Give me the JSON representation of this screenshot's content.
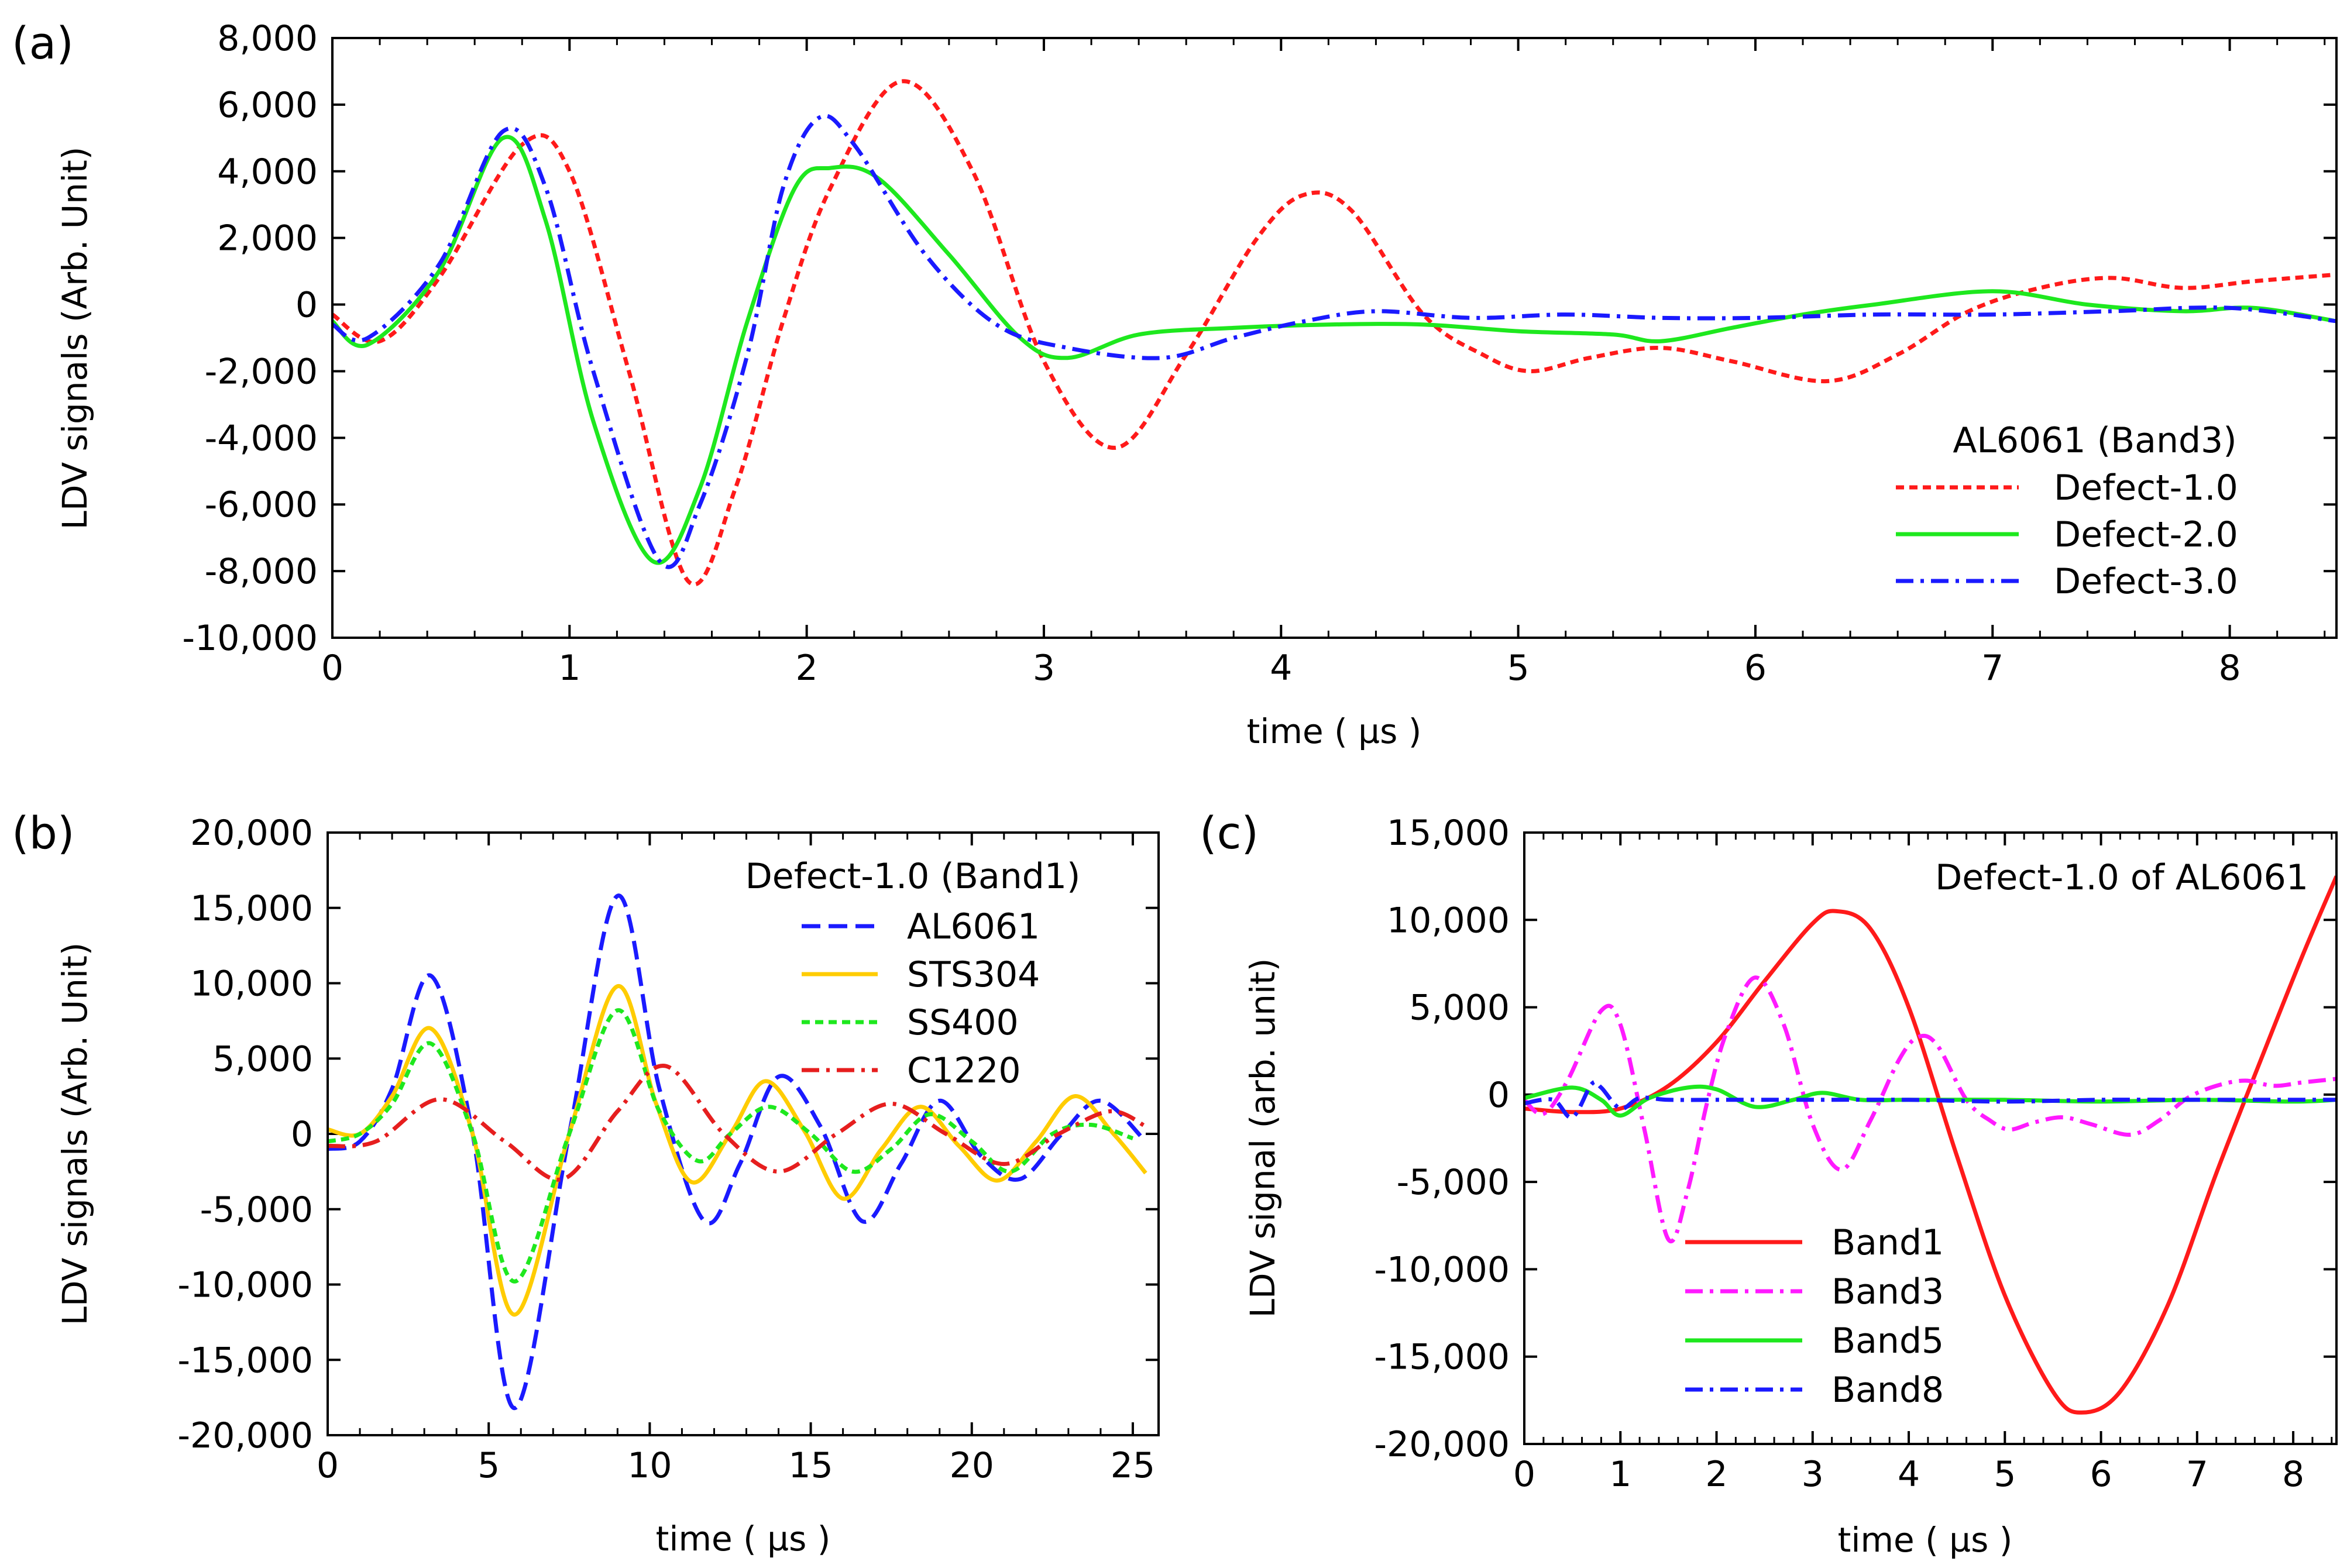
{
  "chart_data": [
    {
      "panel": "(a)",
      "type": "line",
      "xlabel": "time ( µs )",
      "ylabel": "LDV signals (Arb. Unit)",
      "xlim": [
        0,
        8.45
      ],
      "ylim": [
        -10000,
        8000
      ],
      "xticks": [
        0,
        1,
        2,
        3,
        4,
        5,
        6,
        7,
        8
      ],
      "xtick_labels": [
        "0",
        "1",
        "2",
        "3",
        "4",
        "5",
        "6",
        "7",
        "8"
      ],
      "yticks": [
        8000,
        6000,
        4000,
        2000,
        0,
        -2000,
        -4000,
        -6000,
        -8000,
        -10000
      ],
      "ytick_labels": [
        "8,000",
        "6,000",
        "4,000",
        "2,000",
        "0",
        "-2,000",
        "-4,000",
        "-6,000",
        "-8,000",
        "-10,000"
      ],
      "legend_title": "AL6061 (Band3)",
      "legend_position": "bottom-right",
      "series": [
        {
          "name": "Defect-1.0",
          "color": "#ff1a1a",
          "style": "dotted",
          "x": [
            0,
            0.2,
            0.45,
            0.8,
            1.0,
            1.25,
            1.5,
            1.7,
            1.9,
            2.1,
            2.4,
            2.7,
            3.0,
            3.3,
            3.6,
            3.9,
            4.1,
            4.3,
            4.6,
            4.85,
            5.05,
            5.3,
            5.6,
            5.9,
            6.3,
            6.6,
            6.9,
            7.2,
            7.5,
            7.8,
            8.1,
            8.45
          ],
          "y": [
            -300,
            -1100,
            800,
            4800,
            4000,
            -2000,
            -8300,
            -5500,
            -500,
            3500,
            6700,
            4000,
            -1700,
            -4300,
            -1500,
            2000,
            3300,
            2800,
            -300,
            -1500,
            -2000,
            -1600,
            -1300,
            -1700,
            -2300,
            -1500,
            -200,
            500,
            800,
            500,
            700,
            900
          ]
        },
        {
          "name": "Defect-2.0",
          "color": "#1ee81e",
          "style": "solid",
          "x": [
            0,
            0.15,
            0.45,
            0.72,
            0.9,
            1.1,
            1.35,
            1.55,
            1.75,
            1.95,
            2.1,
            2.3,
            2.6,
            2.9,
            3.1,
            3.4,
            3.8,
            4.2,
            4.6,
            5.0,
            5.4,
            5.6,
            5.9,
            6.2,
            6.5,
            7.0,
            7.4,
            7.8,
            8.1,
            8.45
          ],
          "y": [
            -500,
            -1200,
            1000,
            5000,
            2500,
            -3500,
            -7700,
            -5500,
            -500,
            3500,
            4100,
            3800,
            1500,
            -1000,
            -1600,
            -900,
            -700,
            -600,
            -600,
            -800,
            -900,
            -1100,
            -700,
            -300,
            0,
            400,
            0,
            -200,
            -100,
            -500
          ]
        },
        {
          "name": "Defect-3.0",
          "color": "#1a1aff",
          "style": "dashdot",
          "x": [
            0,
            0.15,
            0.45,
            0.72,
            0.9,
            1.1,
            1.38,
            1.55,
            1.75,
            1.9,
            2.05,
            2.2,
            2.5,
            2.8,
            3.1,
            3.5,
            3.8,
            4.1,
            4.4,
            4.8,
            5.2,
            5.6,
            6.0,
            6.5,
            7.0,
            7.5,
            8.0,
            8.45
          ],
          "y": [
            -600,
            -1000,
            1200,
            5200,
            3500,
            -2000,
            -7700,
            -6000,
            -1500,
            3500,
            5600,
            4800,
            1500,
            -600,
            -1300,
            -1600,
            -1000,
            -500,
            -200,
            -400,
            -300,
            -400,
            -400,
            -300,
            -300,
            -200,
            -100,
            -500
          ]
        }
      ]
    },
    {
      "panel": "(b)",
      "type": "line",
      "xlabel": "time ( µs )",
      "ylabel": "LDV signals (Arb. Unit)",
      "xlim": [
        0,
        25.8
      ],
      "ylim": [
        -20000,
        20000
      ],
      "xticks": [
        0,
        5,
        10,
        15,
        20,
        25
      ],
      "xtick_labels": [
        "0",
        "5",
        "10",
        "15",
        "20",
        "25"
      ],
      "yticks": [
        20000,
        15000,
        10000,
        5000,
        0,
        -5000,
        -10000,
        -15000,
        -20000
      ],
      "ytick_labels": [
        "20,000",
        "15,000",
        "10,000",
        "5,000",
        "0",
        "-5,000",
        "-10,000",
        "-15,000",
        "-20,000"
      ],
      "legend_title": "Defect-1.0 (Band1)",
      "legend_position": "top-right",
      "series": [
        {
          "name": "AL6061",
          "color": "#1a1aff",
          "style": "dashed",
          "x": [
            0,
            1,
            2,
            3.2,
            4.5,
            5.8,
            7.5,
            9.0,
            10.3,
            11.7,
            12.8,
            14.0,
            15.3,
            16.6,
            17.8,
            19.0,
            20.3,
            21.5,
            22.8,
            24.0,
            25.4
          ],
          "y": [
            -1000,
            -500,
            3000,
            10500,
            0,
            -18200,
            0,
            15800,
            3000,
            -5800,
            -2000,
            3800,
            500,
            -5800,
            -2000,
            2200,
            -1500,
            -3000,
            0,
            2200,
            -500
          ]
        },
        {
          "name": "STS304",
          "color": "#ffcc00",
          "style": "solid",
          "x": [
            0,
            1,
            2,
            3.2,
            4.5,
            5.8,
            7.5,
            9.0,
            10.2,
            11.3,
            12.5,
            13.6,
            14.8,
            16.0,
            17.2,
            18.4,
            19.6,
            20.8,
            22.0,
            23.2,
            24.4,
            25.4
          ],
          "y": [
            300,
            0,
            2500,
            7000,
            0,
            -12000,
            0,
            9800,
            2000,
            -3200,
            0,
            3500,
            200,
            -4300,
            -1000,
            1800,
            -800,
            -3100,
            -500,
            2500,
            0,
            -2600
          ]
        },
        {
          "name": "SS400",
          "color": "#1ee81e",
          "style": "dotted",
          "x": [
            0,
            1,
            2,
            3.2,
            4.5,
            5.8,
            7.5,
            9.0,
            10.3,
            11.5,
            12.5,
            13.7,
            15.0,
            16.3,
            17.5,
            18.7,
            20.0,
            21.2,
            22.5,
            23.7,
            25.0
          ],
          "y": [
            -500,
            0,
            2000,
            6000,
            0,
            -9800,
            0,
            8200,
            1500,
            -1800,
            0,
            1800,
            0,
            -2500,
            -1000,
            1300,
            -500,
            -2500,
            0,
            600,
            -300
          ]
        },
        {
          "name": "C1220",
          "color": "#e61e1e",
          "style": "dashdot",
          "x": [
            0,
            1.5,
            3.5,
            5.5,
            7.3,
            9.0,
            10.5,
            12.3,
            14.0,
            15.8,
            17.5,
            19.2,
            21.0,
            22.7,
            24.3,
            25.4
          ],
          "y": [
            -800,
            -500,
            2300,
            -500,
            -3000,
            1500,
            4500,
            0,
            -2500,
            0,
            2000,
            0,
            -2000,
            0,
            1500,
            500
          ]
        }
      ]
    },
    {
      "panel": "(c)",
      "type": "line",
      "xlabel": "time ( µs )",
      "ylabel": "LDV signal (arb. unit)",
      "xlim": [
        0,
        8.45
      ],
      "ylim": [
        -20000,
        15000
      ],
      "xticks": [
        0,
        1,
        2,
        3,
        4,
        5,
        6,
        7,
        8
      ],
      "xtick_labels": [
        "0",
        "1",
        "2",
        "3",
        "4",
        "5",
        "6",
        "7",
        "8"
      ],
      "yticks": [
        15000,
        10000,
        5000,
        0,
        -5000,
        -10000,
        -15000,
        -20000
      ],
      "ytick_labels": [
        "15,000",
        "10,000",
        "5,000",
        "0",
        "-5,000",
        "-10,000",
        "-15,000",
        "-20,000"
      ],
      "legend_title": "Defect-1.0 of AL6061",
      "legend_position": "bottom-center",
      "series": [
        {
          "name": "Band1",
          "color": "#ff1a1a",
          "style": "solid",
          "x": [
            0,
            0.5,
            1.0,
            1.5,
            2.0,
            2.5,
            3.0,
            3.25,
            3.6,
            4.0,
            4.5,
            5.0,
            5.5,
            5.8,
            6.2,
            6.7,
            7.2,
            7.7,
            8.1,
            8.45
          ],
          "y": [
            -800,
            -1000,
            -800,
            500,
            3000,
            6500,
            9800,
            10500,
            9500,
            5000,
            -3500,
            -11500,
            -17000,
            -18200,
            -17000,
            -12000,
            -4500,
            2500,
            8000,
            12500
          ]
        },
        {
          "name": "Band3",
          "color": "#ff1aff",
          "style": "dashdot",
          "x": [
            0,
            0.2,
            0.45,
            0.8,
            1.0,
            1.25,
            1.5,
            1.7,
            1.9,
            2.1,
            2.4,
            2.7,
            3.0,
            3.3,
            3.6,
            3.9,
            4.1,
            4.3,
            4.6,
            4.85,
            5.05,
            5.3,
            5.6,
            5.9,
            6.3,
            6.6,
            6.9,
            7.2,
            7.5,
            7.8,
            8.1,
            8.45
          ],
          "y": [
            -300,
            -1100,
            800,
            4800,
            4000,
            -2000,
            -8300,
            -5500,
            -500,
            3500,
            6700,
            4000,
            -1700,
            -4300,
            -1500,
            2000,
            3300,
            2800,
            -300,
            -1500,
            -2000,
            -1600,
            -1300,
            -1700,
            -2300,
            -1500,
            -200,
            500,
            800,
            500,
            700,
            900
          ]
        },
        {
          "name": "Band5",
          "color": "#1ee81e",
          "style": "solid",
          "x": [
            0,
            0.5,
            0.8,
            1.0,
            1.3,
            1.7,
            2.0,
            2.4,
            2.8,
            3.1,
            3.5,
            4.0,
            5.0,
            6.0,
            7.0,
            8.0,
            8.45
          ],
          "y": [
            -200,
            400,
            -300,
            -1200,
            -200,
            400,
            300,
            -700,
            -300,
            100,
            -300,
            -300,
            -300,
            -400,
            -300,
            -400,
            -300
          ]
        },
        {
          "name": "Band8",
          "color": "#1a1aff",
          "style": "dashdot",
          "x": [
            0,
            0.3,
            0.5,
            0.7,
            0.8,
            1.0,
            1.2,
            1.5,
            2.0,
            3.0,
            4.0,
            5.0,
            6.0,
            7.0,
            8.0,
            8.45
          ],
          "y": [
            -500,
            -300,
            -1300,
            600,
            400,
            -800,
            -200,
            -300,
            -300,
            -300,
            -300,
            -400,
            -300,
            -300,
            -300,
            -300
          ]
        }
      ]
    }
  ]
}
